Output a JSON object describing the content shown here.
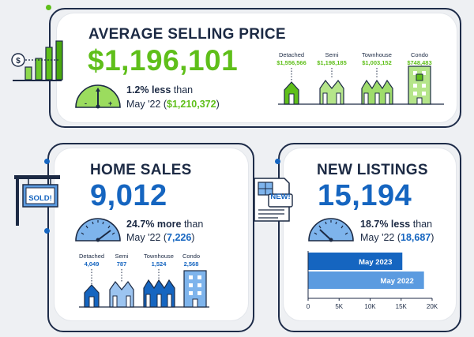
{
  "colors": {
    "navy": "#1c2a44",
    "green": "#5fbf1a",
    "blue": "#1565c0",
    "lightblue": "#5b9be0"
  },
  "avg_price": {
    "title": "AVERAGE SELLING PRICE",
    "value": "$1,196,101",
    "pct": "1.2% less",
    "than": " than",
    "prev_pre": "May '22 (",
    "prev_value": "$1,210,372",
    "prev_post": ")",
    "types": [
      {
        "label": "Detached",
        "value": "$1,556,566"
      },
      {
        "label": "Semi",
        "value": "$1,198,185"
      },
      {
        "label": "Townhouse",
        "value": "$1,003,152"
      },
      {
        "label": "Condo",
        "value": "$748,483"
      }
    ]
  },
  "home_sales": {
    "title": "HOME SALES",
    "value": "9,012",
    "pct": "24.7% more",
    "than": " than",
    "prev_pre": "May '22 (",
    "prev_value": "7,226",
    "prev_post": ")",
    "sign_text": "SOLD!",
    "types": [
      {
        "label": "Detached",
        "value": "4,049"
      },
      {
        "label": "Semi",
        "value": "787"
      },
      {
        "label": "Townhouse",
        "value": "1,524"
      },
      {
        "label": "Condo",
        "value": "2,568"
      }
    ]
  },
  "new_listings": {
    "title": "NEW LISTINGS",
    "value": "15,194",
    "pct": "18.7% less",
    "than": " than",
    "prev_pre": "May '22 (",
    "prev_value": "18,687",
    "prev_post": ")",
    "flyer_text": "NEW!"
  },
  "chart_data": {
    "type": "bar",
    "orientation": "horizontal",
    "categories": [
      "May 2023",
      "May 2022"
    ],
    "values": [
      15194,
      18687
    ],
    "xlim": [
      0,
      20000
    ],
    "xticks": [
      "0",
      "5K",
      "10K",
      "15K",
      "20K"
    ]
  }
}
